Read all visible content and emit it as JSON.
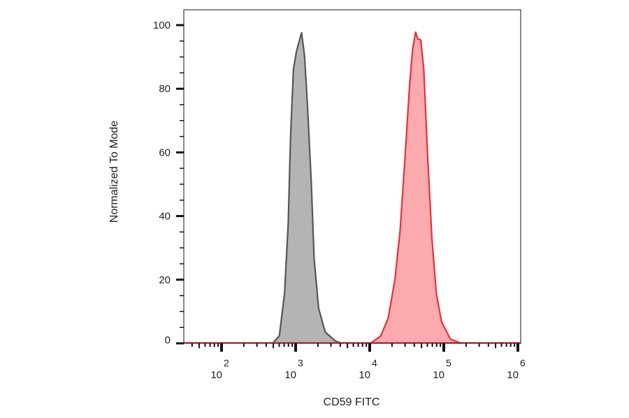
{
  "chart_data": {
    "type": "area",
    "title": "",
    "xlabel": "CD59 FITC",
    "ylabel": "Normalized To Mode",
    "x_scale": "log",
    "xlim": [
      32,
      1100000
    ],
    "ylim": [
      0,
      100
    ],
    "x_ticks": [
      {
        "base": "10",
        "exp": "2",
        "value": 100
      },
      {
        "base": "10",
        "exp": "3",
        "value": 1000
      },
      {
        "base": "10",
        "exp": "4",
        "value": 10000
      },
      {
        "base": "10",
        "exp": "5",
        "value": 100000
      },
      {
        "base": "10",
        "exp": "6",
        "value": 1000000
      }
    ],
    "y_ticks": [
      "0",
      "20",
      "40",
      "60",
      "80",
      "100"
    ],
    "grid": false,
    "series": [
      {
        "color": "#555555",
        "fill": "#b4b4b4",
        "x": [
          490,
          603,
          708,
          794,
          851,
          933,
          1023,
          1202,
          1318,
          1445,
          1622,
          1778,
          2042,
          2512,
          3467,
          4266
        ],
        "y": [
          0,
          2.4,
          15.6,
          37.7,
          64,
          86,
          91.6,
          97.6,
          90.5,
          75,
          51,
          26.6,
          11,
          3.5,
          0.7,
          0
        ]
      },
      {
        "color": "#e8303a",
        "fill": "#fbaaae",
        "x": [
          10233,
          14125,
          17783,
          21878,
          25704,
          30200,
          34674,
          38019,
          41687,
          44668,
          48978,
          53703,
          60256,
          69183,
          79433,
          93325,
          123027,
          173780
        ],
        "y": [
          0,
          2.4,
          8,
          20,
          35.5,
          59.7,
          81.7,
          92.7,
          97.8,
          95.6,
          95.4,
          86,
          59.7,
          33,
          15.6,
          6.8,
          1.3,
          0
        ]
      }
    ]
  }
}
